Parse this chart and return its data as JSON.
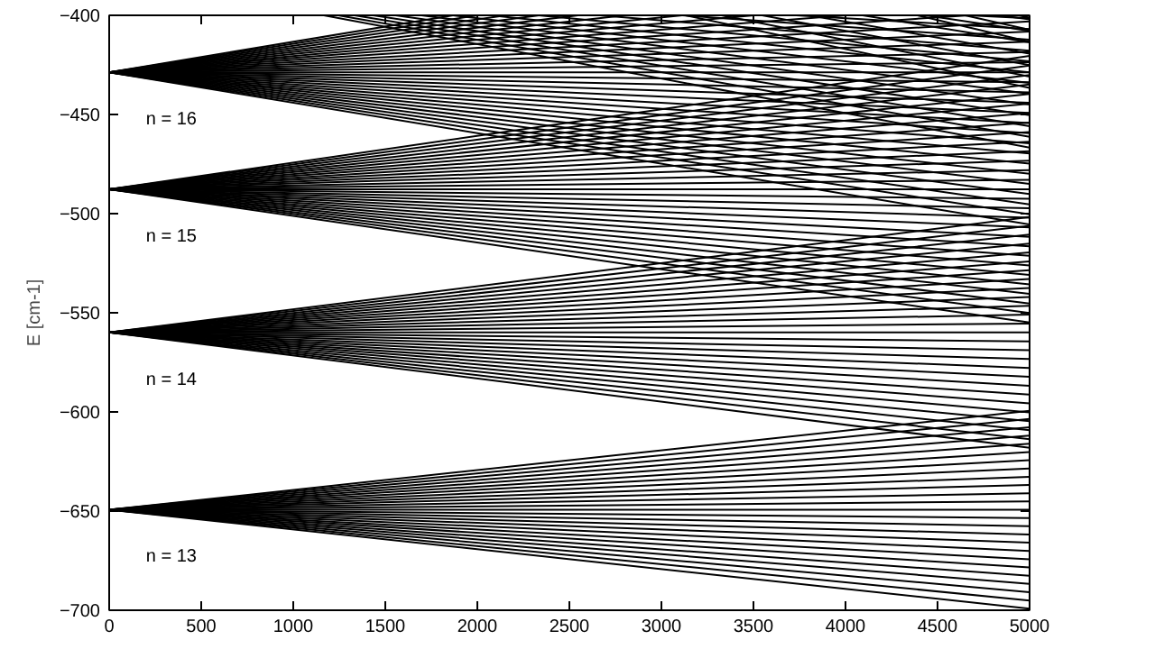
{
  "chart_data": {
    "type": "line",
    "ylabel": "E [cm-1]",
    "color": "#000000",
    "x": [
      0,
      5000
    ],
    "xlim": [
      0,
      5000
    ],
    "ylim": [
      -700,
      -400
    ],
    "xticks": [
      0,
      500,
      1000,
      1500,
      2000,
      2500,
      3000,
      3500,
      4000,
      4500,
      5000
    ],
    "yticks": [
      -700,
      -650,
      -600,
      -550,
      -500,
      -450,
      -400
    ],
    "annotations": [
      "n = 16",
      "n = 15",
      "n = 14",
      "n = 13"
    ],
    "series": [
      {
        "values": [
          -649.3,
          -699.2
        ]
      },
      {
        "values": [
          -649.3,
          -695.1
        ]
      },
      {
        "values": [
          -649.3,
          -690.9
        ]
      },
      {
        "values": [
          -649.3,
          -686.7
        ]
      },
      {
        "values": [
          -649.3,
          -682.6
        ]
      },
      {
        "values": [
          -649.3,
          -678.4
        ]
      },
      {
        "values": [
          -649.3,
          -674.3
        ]
      },
      {
        "values": [
          -649.3,
          -670.1
        ]
      },
      {
        "values": [
          -649.3,
          -665.9
        ]
      },
      {
        "values": [
          -649.3,
          -661.8
        ]
      },
      {
        "values": [
          -649.3,
          -657.6
        ]
      },
      {
        "values": [
          -649.3,
          -653.5
        ]
      },
      {
        "values": [
          -649.3,
          -649.3
        ]
      },
      {
        "values": [
          -649.3,
          -645.1
        ]
      },
      {
        "values": [
          -649.3,
          -641.0
        ]
      },
      {
        "values": [
          -649.3,
          -636.8
        ]
      },
      {
        "values": [
          -649.3,
          -632.7
        ]
      },
      {
        "values": [
          -649.3,
          -628.5
        ]
      },
      {
        "values": [
          -649.3,
          -624.3
        ]
      },
      {
        "values": [
          -649.3,
          -620.2
        ]
      },
      {
        "values": [
          -649.3,
          -616.0
        ]
      },
      {
        "values": [
          -649.3,
          -611.9
        ]
      },
      {
        "values": [
          -649.3,
          -607.7
        ]
      },
      {
        "values": [
          -649.3,
          -603.5
        ]
      },
      {
        "values": [
          -649.3,
          -599.4
        ]
      },
      {
        "values": [
          -559.9,
          -618.1
        ]
      },
      {
        "values": [
          -559.9,
          -613.7
        ]
      },
      {
        "values": [
          -559.9,
          -609.2
        ]
      },
      {
        "values": [
          -559.9,
          -604.7
        ]
      },
      {
        "values": [
          -559.9,
          -600.2
        ]
      },
      {
        "values": [
          -559.9,
          -595.7
        ]
      },
      {
        "values": [
          -559.9,
          -591.3
        ]
      },
      {
        "values": [
          -559.9,
          -586.8
        ]
      },
      {
        "values": [
          -559.9,
          -582.3
        ]
      },
      {
        "values": [
          -559.9,
          -577.8
        ]
      },
      {
        "values": [
          -559.9,
          -573.3
        ]
      },
      {
        "values": [
          -559.9,
          -568.9
        ]
      },
      {
        "values": [
          -559.9,
          -564.4
        ]
      },
      {
        "values": [
          -559.9,
          -559.9
        ]
      },
      {
        "values": [
          -559.9,
          -555.4
        ]
      },
      {
        "values": [
          -559.9,
          -550.9
        ]
      },
      {
        "values": [
          -559.9,
          -546.5
        ]
      },
      {
        "values": [
          -559.9,
          -542.0
        ]
      },
      {
        "values": [
          -559.9,
          -537.5
        ]
      },
      {
        "values": [
          -559.9,
          -533.0
        ]
      },
      {
        "values": [
          -559.9,
          -528.5
        ]
      },
      {
        "values": [
          -559.9,
          -524.1
        ]
      },
      {
        "values": [
          -559.9,
          -519.6
        ]
      },
      {
        "values": [
          -559.9,
          -515.1
        ]
      },
      {
        "values": [
          -559.9,
          -510.6
        ]
      },
      {
        "values": [
          -559.9,
          -506.1
        ]
      },
      {
        "values": [
          -559.9,
          -501.7
        ]
      },
      {
        "values": [
          -487.7,
          -554.9
        ]
      },
      {
        "values": [
          -487.7,
          -550.1
        ]
      },
      {
        "values": [
          -487.7,
          -545.3
        ]
      },
      {
        "values": [
          -487.7,
          -540.5
        ]
      },
      {
        "values": [
          -487.7,
          -535.7
        ]
      },
      {
        "values": [
          -487.7,
          -530.9
        ]
      },
      {
        "values": [
          -487.7,
          -526.1
        ]
      },
      {
        "values": [
          -487.7,
          -521.3
        ]
      },
      {
        "values": [
          -487.7,
          -516.5
        ]
      },
      {
        "values": [
          -487.7,
          -511.7
        ]
      },
      {
        "values": [
          -487.7,
          -506.9
        ]
      },
      {
        "values": [
          -487.7,
          -502.1
        ]
      },
      {
        "values": [
          -487.7,
          -497.3
        ]
      },
      {
        "values": [
          -487.7,
          -492.5
        ]
      },
      {
        "values": [
          -487.7,
          -487.7
        ]
      },
      {
        "values": [
          -487.7,
          -482.9
        ]
      },
      {
        "values": [
          -487.7,
          -478.1
        ]
      },
      {
        "values": [
          -487.7,
          -473.3
        ]
      },
      {
        "values": [
          -487.7,
          -468.5
        ]
      },
      {
        "values": [
          -487.7,
          -463.7
        ]
      },
      {
        "values": [
          -487.7,
          -458.9
        ]
      },
      {
        "values": [
          -487.7,
          -454.1
        ]
      },
      {
        "values": [
          -487.7,
          -449.3
        ]
      },
      {
        "values": [
          -487.7,
          -444.5
        ]
      },
      {
        "values": [
          -487.7,
          -439.7
        ]
      },
      {
        "values": [
          -487.7,
          -434.9
        ]
      },
      {
        "values": [
          -487.7,
          -430.1
        ]
      },
      {
        "values": [
          -487.7,
          -425.3
        ]
      },
      {
        "values": [
          -487.7,
          -420.5
        ]
      },
      {
        "values": [
          -428.7,
          -505.5
        ]
      },
      {
        "values": [
          -428.7,
          -500.4
        ]
      },
      {
        "values": [
          -428.7,
          -495.3
        ]
      },
      {
        "values": [
          -428.7,
          -490.1
        ]
      },
      {
        "values": [
          -428.7,
          -485.0
        ]
      },
      {
        "values": [
          -428.7,
          -479.9
        ]
      },
      {
        "values": [
          -428.7,
          -474.8
        ]
      },
      {
        "values": [
          -428.7,
          -469.7
        ]
      },
      {
        "values": [
          -428.7,
          -464.5
        ]
      },
      {
        "values": [
          -428.7,
          -459.4
        ]
      },
      {
        "values": [
          -428.7,
          -454.3
        ]
      },
      {
        "values": [
          -428.7,
          -449.2
        ]
      },
      {
        "values": [
          -428.7,
          -444.1
        ]
      },
      {
        "values": [
          -428.7,
          -438.9
        ]
      },
      {
        "values": [
          -428.7,
          -433.8
        ]
      },
      {
        "values": [
          -428.7,
          -428.7
        ]
      },
      {
        "values": [
          -428.7,
          -423.6
        ]
      },
      {
        "values": [
          -428.7,
          -418.5
        ]
      },
      {
        "values": [
          -428.7,
          -413.3
        ]
      },
      {
        "values": [
          -428.7,
          -408.2
        ]
      },
      {
        "values": [
          -428.7,
          -403.1
        ]
      },
      {
        "x": [
          0,
          4671
        ],
        "values": [
          -428.7,
          -400
        ]
      },
      {
        "x": [
          0,
          4004
        ],
        "values": [
          -428.7,
          -400
        ]
      },
      {
        "x": [
          0,
          3503
        ],
        "values": [
          -428.7,
          -400
        ]
      },
      {
        "x": [
          0,
          3114
        ],
        "values": [
          -428.7,
          -400
        ]
      },
      {
        "x": [
          0,
          2803
        ],
        "values": [
          -428.7,
          -400
        ]
      },
      {
        "x": [
          0,
          2548
        ],
        "values": [
          -428.7,
          -400
        ]
      },
      {
        "x": [
          0,
          2336
        ],
        "values": [
          -428.7,
          -400
        ]
      },
      {
        "x": [
          0,
          2156
        ],
        "values": [
          -428.7,
          -400
        ]
      },
      {
        "x": [
          0,
          2002
        ],
        "values": [
          -428.7,
          -400
        ]
      },
      {
        "x": [
          0,
          1869
        ],
        "values": [
          -428.7,
          -400
        ]
      },
      {
        "x": [
          4665,
          5000
        ],
        "values": [
          -400,
          -401.5
        ]
      },
      {
        "x": [
          3732,
          5000
        ],
        "values": [
          -400,
          -406.9
        ]
      },
      {
        "x": [
          3110,
          5000
        ],
        "values": [
          -400,
          -412.3
        ]
      },
      {
        "x": [
          2665,
          5000
        ],
        "values": [
          -400,
          -417.8
        ]
      },
      {
        "x": [
          2332,
          5000
        ],
        "values": [
          -400,
          -423.2
        ]
      },
      {
        "x": [
          2073,
          5000
        ],
        "values": [
          -400,
          -428.7
        ]
      },
      {
        "x": [
          1866,
          5000
        ],
        "values": [
          -400,
          -434.1
        ]
      },
      {
        "x": [
          1696,
          5000
        ],
        "values": [
          -400,
          -439.5
        ]
      },
      {
        "x": [
          1555,
          5000
        ],
        "values": [
          -400,
          -445.0
        ]
      },
      {
        "x": [
          1435,
          5000
        ],
        "values": [
          -400,
          -450.4
        ]
      },
      {
        "x": [
          1333,
          5000
        ],
        "values": [
          -400,
          -455.9
        ]
      },
      {
        "x": [
          1244,
          5000
        ],
        "values": [
          -400,
          -461.3
        ]
      },
      {
        "x": [
          1166,
          5000
        ],
        "values": [
          -400,
          -466.7
        ]
      },
      {
        "x": [
          4837,
          5000
        ],
        "values": [
          -400,
          -402.1
        ]
      },
      {
        "x": [
          4434,
          5000
        ],
        "values": [
          -400,
          -407.8
        ]
      },
      {
        "x": [
          4093,
          5000
        ],
        "values": [
          -400,
          -413.6
        ]
      },
      {
        "x": [
          3801,
          5000
        ],
        "values": [
          -400,
          -419.3
        ]
      },
      {
        "x": [
          3547,
          5000
        ],
        "values": [
          -400,
          -425.1
        ]
      },
      {
        "x": [
          3326,
          5000
        ],
        "values": [
          -400,
          -430.9
        ]
      },
      {
        "x": [
          3130,
          5000
        ],
        "values": [
          -400,
          -436.6
        ]
      },
      {
        "x": [
          4939,
          5000
        ],
        "values": [
          -400,
          -401.2
        ]
      },
      {
        "x": [
          4649,
          5000
        ],
        "values": [
          -400,
          -407.3
        ]
      },
      {
        "x": [
          4391,
          5000
        ],
        "values": [
          -400,
          -413.3
        ]
      }
    ]
  }
}
